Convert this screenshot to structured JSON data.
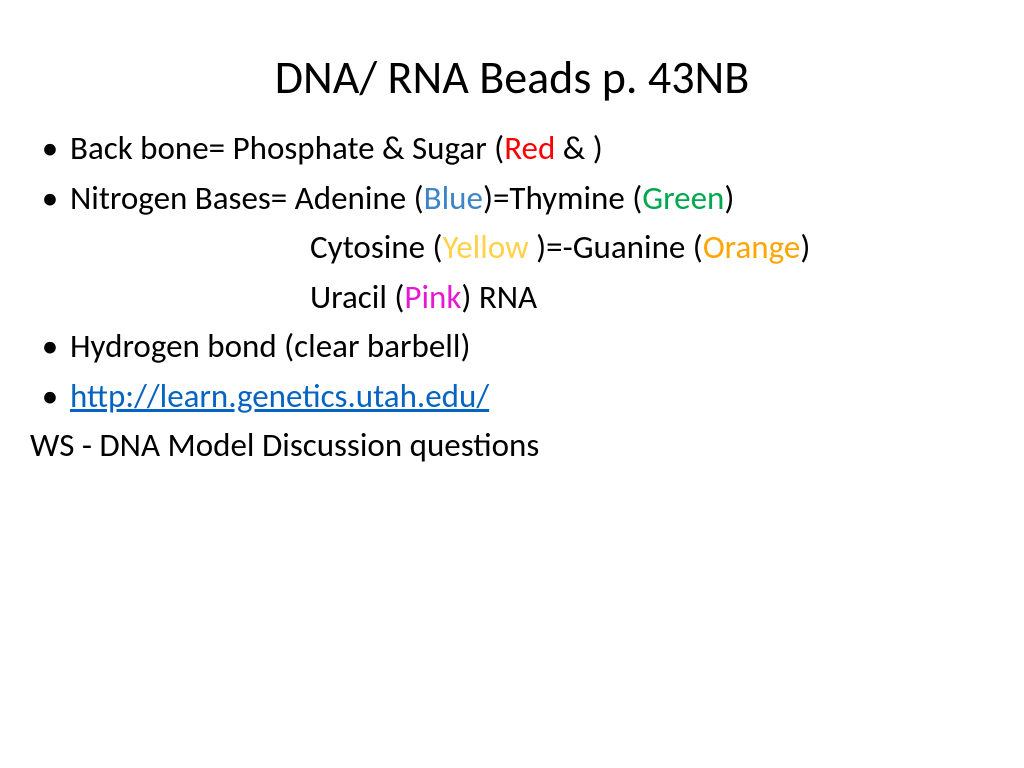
{
  "title": "DNA/ RNA Beads p. 43NB",
  "bullets": {
    "b1": {
      "pre": "Back bone= Phosphate & Sugar (",
      "red": "Red",
      "mid": " &              )"
    },
    "b2": {
      "pre": "Nitrogen Bases= Adenine (",
      "blue": "Blue",
      "mid": ")=Thymine (",
      "green": "Green",
      "post": ")"
    },
    "line3": {
      "pre": "Cytosine (",
      "yellow": "Yellow ",
      "mid": ")=-Guanine (",
      "orange": "Orange",
      "post": ")"
    },
    "line4": {
      "pre": "Uracil (",
      "pink": "Pink",
      "post": ")   RNA"
    },
    "b5": "Hydrogen bond (clear barbell)",
    "b6_link": "http://learn.genetics.utah.edu/",
    "line7": "WS - DNA Model Discussion questions"
  },
  "bullet_char": "•",
  "colors": {
    "red": "#ff0000",
    "blue": "#3d85c6",
    "green": "#00a650",
    "yellow": "#ffd24a",
    "orange": "#ffa500",
    "pink": "#e619d3",
    "link": "#0563c1",
    "text": "#000000",
    "background": "#ffffff"
  },
  "font": {
    "title_size_pt": 34,
    "body_size_pt": 25,
    "family": "Calibri"
  }
}
